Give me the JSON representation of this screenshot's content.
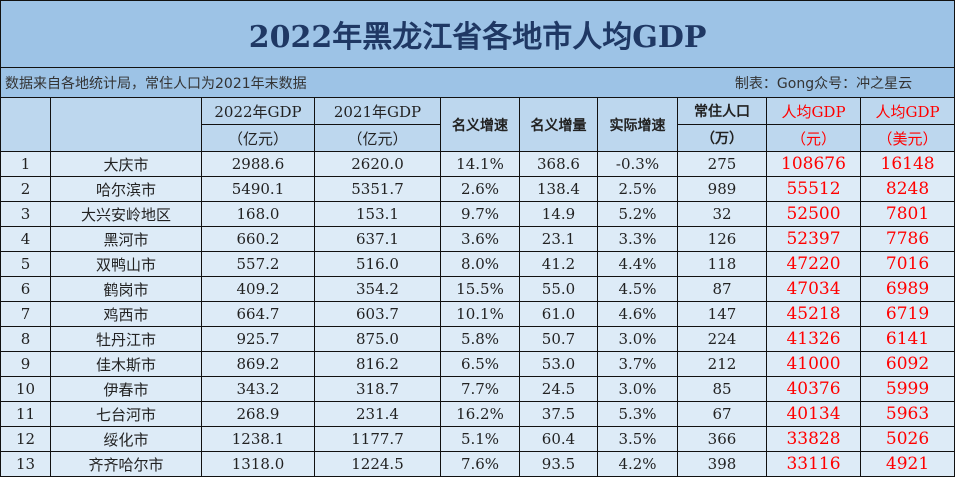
{
  "title": "2022年黑龙江省各地市人均GDP",
  "source_note": "数据来自各地统计局，常住人口为2021年末数据",
  "author_note": "制表：Gong众号：冲之星云",
  "headers": {
    "gdp2022": [
      "2022年GDP",
      "（亿元）"
    ],
    "gdp2021": [
      "2021年GDP",
      "（亿元）"
    ],
    "nominal_growth": "名义增速",
    "nominal_increase": "名义增量",
    "real_growth": "实际增速",
    "population": [
      "常住人口",
      "（万）"
    ],
    "per_capita_cny": [
      "人均GDP",
      "（元）"
    ],
    "per_capita_usd": [
      "人均GDP",
      "（美元）"
    ]
  },
  "accent_color": "#ff0000",
  "rows": [
    [
      "1",
      "大庆市",
      "2988.6",
      "2620.0",
      "14.1%",
      "368.6",
      "-0.3%",
      "275",
      "108676",
      "16148"
    ],
    [
      "2",
      "哈尔滨市",
      "5490.1",
      "5351.7",
      "2.6%",
      "138.4",
      "2.5%",
      "989",
      "55512",
      "8248"
    ],
    [
      "3",
      "大兴安岭地区",
      "168.0",
      "153.1",
      "9.7%",
      "14.9",
      "5.2%",
      "32",
      "52500",
      "7801"
    ],
    [
      "4",
      "黑河市",
      "660.2",
      "637.1",
      "3.6%",
      "23.1",
      "3.3%",
      "126",
      "52397",
      "7786"
    ],
    [
      "5",
      "双鸭山市",
      "557.2",
      "516.0",
      "8.0%",
      "41.2",
      "4.4%",
      "118",
      "47220",
      "7016"
    ],
    [
      "6",
      "鹤岗市",
      "409.2",
      "354.2",
      "15.5%",
      "55.0",
      "4.5%",
      "87",
      "47034",
      "6989"
    ],
    [
      "7",
      "鸡西市",
      "664.7",
      "603.7",
      "10.1%",
      "61.0",
      "4.6%",
      "147",
      "45218",
      "6719"
    ],
    [
      "8",
      "牡丹江市",
      "925.7",
      "875.0",
      "5.8%",
      "50.7",
      "3.0%",
      "224",
      "41326",
      "6141"
    ],
    [
      "9",
      "佳木斯市",
      "869.2",
      "816.2",
      "6.5%",
      "53.0",
      "3.7%",
      "212",
      "41000",
      "6092"
    ],
    [
      "10",
      "伊春市",
      "343.2",
      "318.7",
      "7.7%",
      "24.5",
      "3.0%",
      "85",
      "40376",
      "5999"
    ],
    [
      "11",
      "七台河市",
      "268.9",
      "231.4",
      "16.2%",
      "37.5",
      "5.3%",
      "67",
      "40134",
      "5963"
    ],
    [
      "12",
      "绥化市",
      "1238.1",
      "1177.7",
      "5.1%",
      "60.4",
      "3.5%",
      "366",
      "33828",
      "5026"
    ],
    [
      "13",
      "齐齐哈尔市",
      "1318.0",
      "1224.5",
      "7.6%",
      "93.5",
      "4.2%",
      "398",
      "33116",
      "4921"
    ]
  ]
}
